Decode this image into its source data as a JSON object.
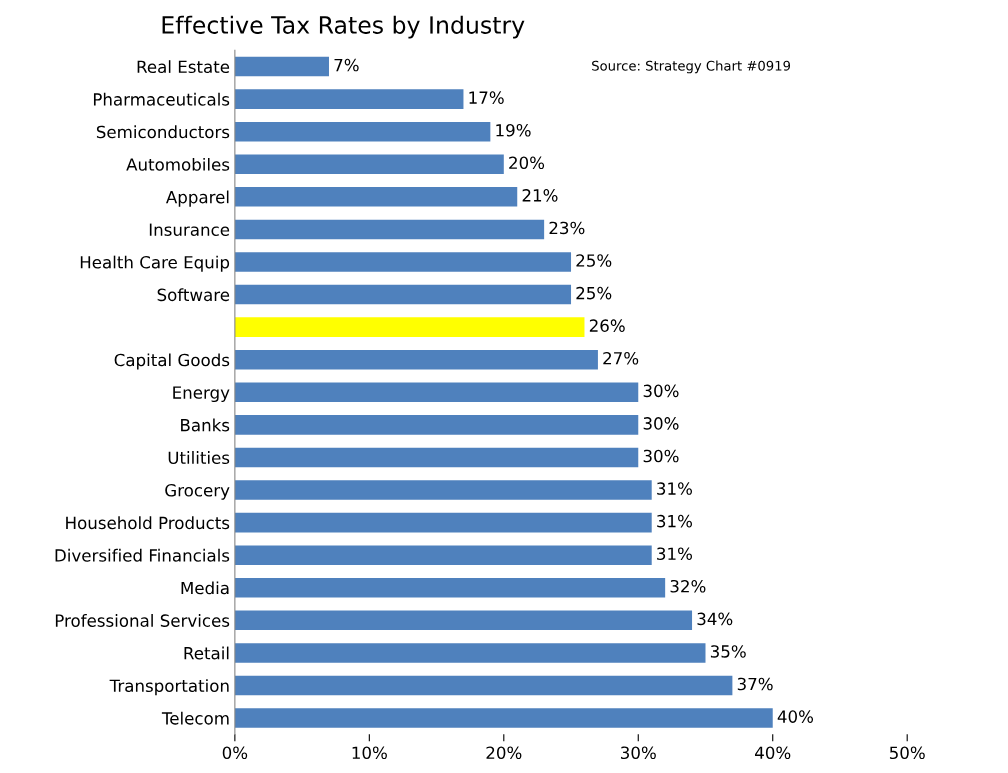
{
  "chart_data": {
    "type": "bar",
    "orientation": "horizontal",
    "title": "Effective Tax Rates by Industry",
    "categories": [
      "Real Estate",
      "Pharmaceuticals",
      "Semiconductors",
      "Automobiles",
      "Apparel",
      "Insurance",
      "Health Care Equip",
      "Software",
      null,
      "Capital Goods",
      "Energy",
      "Banks",
      "Utilities",
      "Grocery",
      "Household Products",
      "Diversified Financials",
      "Media",
      "Professional Services",
      "Retail",
      "Transportation",
      "Telecom"
    ],
    "values": [
      7,
      17,
      19,
      20,
      21,
      23,
      25,
      25,
      26,
      27,
      30,
      30,
      30,
      31,
      31,
      31,
      32,
      34,
      35,
      37,
      40
    ],
    "colors": [
      "#4f81bd",
      "#4f81bd",
      "#4f81bd",
      "#4f81bd",
      "#4f81bd",
      "#4f81bd",
      "#4f81bd",
      "#4f81bd",
      "#ffff00",
      "#4f81bd",
      "#4f81bd",
      "#4f81bd",
      "#4f81bd",
      "#4f81bd",
      "#4f81bd",
      "#4f81bd",
      "#4f81bd",
      "#4f81bd",
      "#4f81bd",
      "#4f81bd",
      "#4f81bd"
    ],
    "value_labels": [
      "7%",
      "17%",
      "19%",
      "20%",
      "21%",
      "23%",
      "25%",
      "25%",
      "26%",
      "27%",
      "30%",
      "30%",
      "30%",
      "31%",
      "31%",
      "31%",
      "32%",
      "34%",
      "35%",
      "37%",
      "40%"
    ],
    "xlim": [
      0,
      50
    ],
    "xticks": [
      {
        "value": 0,
        "label": "0%"
      },
      {
        "value": 10,
        "label": "10%"
      },
      {
        "value": 20,
        "label": "20%"
      },
      {
        "value": 30,
        "label": "30%"
      },
      {
        "value": 40,
        "label": "40%"
      },
      {
        "value": 50,
        "label": "50%"
      }
    ],
    "annotations": [
      "Source: Strategy Chart #0919"
    ],
    "grid": false,
    "legend": false
  }
}
